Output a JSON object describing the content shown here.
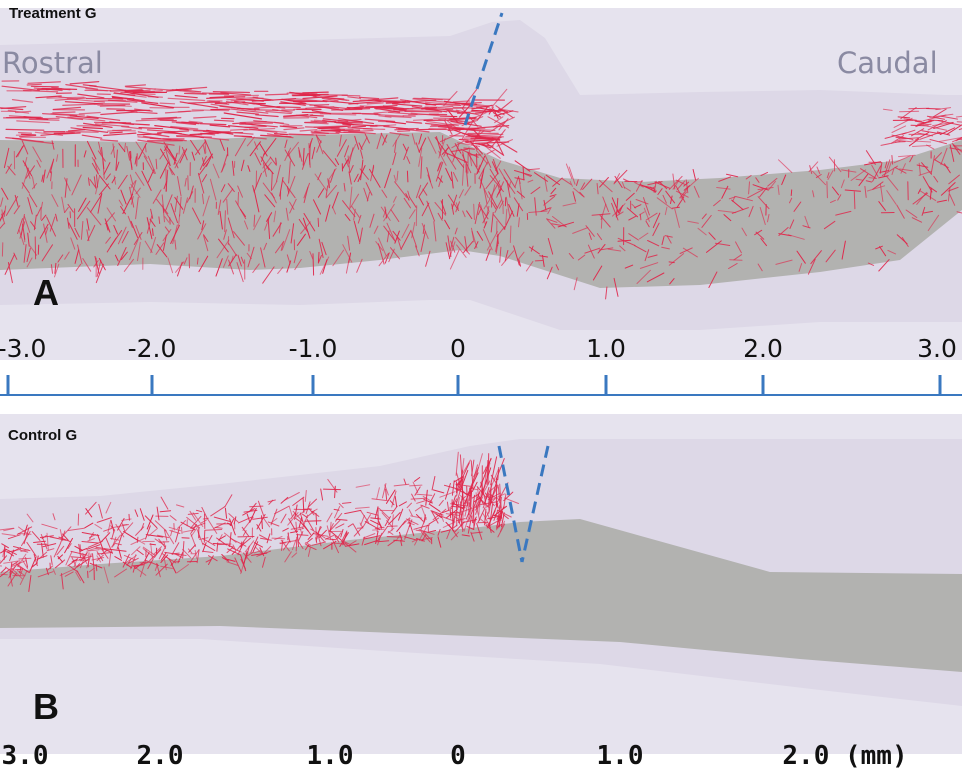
{
  "colors": {
    "meninges": "#ddd8e7",
    "outer_band": "#e6e3ee",
    "gray_matter": "#b2b2b0",
    "axons": "#e0264a",
    "injury_marker": "#3a78c0",
    "axis": "#3a78c0"
  },
  "panel_a": {
    "title": "Treatment G",
    "letter": "A",
    "rostral_label": "Rostral",
    "caudal_label": "Caudal",
    "axis_tick_labels": [
      "-3.0",
      "-2.0",
      "-1.0",
      "0",
      "1.0",
      "2.0",
      "3.0"
    ]
  },
  "panel_b": {
    "title": "Control  G",
    "letter": "B",
    "bottom_partial_labels": [
      "3.0",
      "2.0",
      "1.0",
      "0",
      "1.0",
      "2.0 (mm)"
    ]
  }
}
